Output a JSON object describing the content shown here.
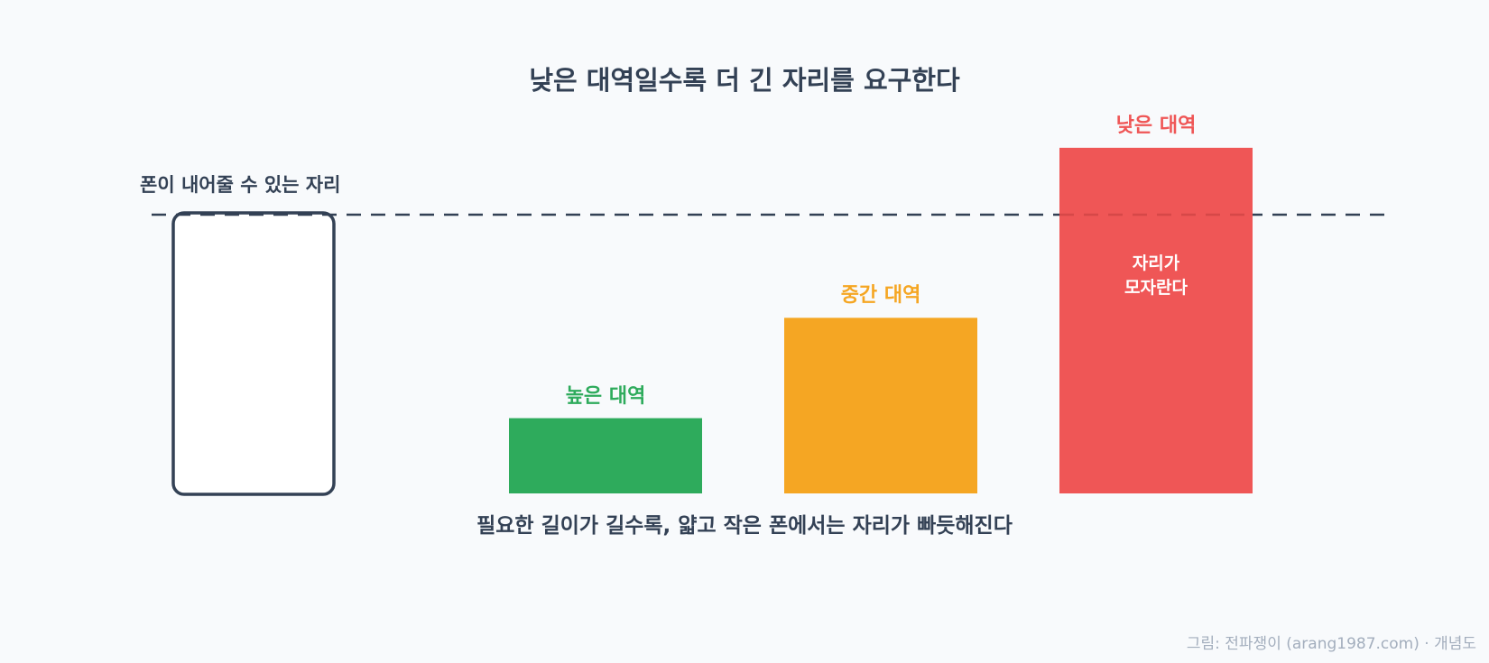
{
  "title": "낮은 대역일수록 더 긴 자리를 요구한다",
  "phone_limit_label": "폰이 내어줄 수 있는 자리",
  "bands": [
    {
      "label": "높은 대역",
      "color": "#2eab5c",
      "required_length": 0.27
    },
    {
      "label": "중간 대역",
      "color": "#f5a623",
      "required_length": 0.63
    },
    {
      "label": "낮은 대역",
      "color": "#ef5656",
      "required_length": 1.24
    }
  ],
  "low_band_note": [
    "자리가",
    "모자란다"
  ],
  "caption": "필요한 길이가 길수록, 얇고 작은 폰에서는 자리가 빠듯해진다",
  "credit": "그림: 전파쟁이 (arang1987.com) · 개념도",
  "colors": {
    "background": "#f8fafc",
    "text": "#334155",
    "phone_outline": "#334155",
    "dashed_line": "#334155"
  }
}
